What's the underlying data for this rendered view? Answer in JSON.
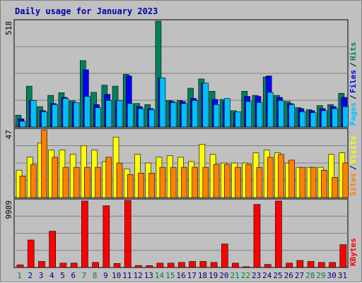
{
  "title": "Daily usage for January 2023",
  "colors": {
    "background": "#c0c0c0",
    "hits": "#00805c",
    "files": "#0000ff",
    "pages": "#00c0ff",
    "visits": "#ffff00",
    "sites": "#ff8000",
    "kbytes": "#ff0000",
    "weekend_label": "#008040",
    "weekday_label": "#000080",
    "title": "#0000aa"
  },
  "chart_data": [
    {
      "type": "bar",
      "panel": "hits-files-pages",
      "ymax_label": "518",
      "ymax": 518,
      "legend": [
        "Pages",
        "Files",
        "Hits"
      ],
      "categories": [
        "1",
        "2",
        "3",
        "4",
        "5",
        "6",
        "7",
        "8",
        "9",
        "10",
        "11",
        "12",
        "13",
        "14",
        "15",
        "16",
        "17",
        "18",
        "19",
        "20",
        "21",
        "22",
        "23",
        "24",
        "25",
        "26",
        "27",
        "28",
        "29",
        "30",
        "31"
      ],
      "series": [
        {
          "name": "Hits",
          "values": [
            58,
            200,
            100,
            155,
            168,
            128,
            325,
            170,
            205,
            200,
            258,
            115,
            110,
            518,
            130,
            130,
            190,
            235,
            175,
            135,
            80,
            175,
            155,
            245,
            155,
            125,
            95,
            85,
            105,
            110,
            165
          ]
        },
        {
          "name": "Files",
          "values": [
            40,
            130,
            80,
            115,
            145,
            120,
            280,
            110,
            160,
            130,
            250,
            100,
            90,
            240,
            125,
            125,
            140,
            215,
            135,
            125,
            70,
            150,
            150,
            250,
            145,
            115,
            90,
            80,
            90,
            100,
            145
          ]
        },
        {
          "name": "Pages",
          "values": [
            28,
            130,
            75,
            110,
            140,
            120,
            150,
            95,
            130,
            130,
            115,
            90,
            85,
            240,
            120,
            115,
            130,
            215,
            110,
            140,
            75,
            125,
            120,
            170,
            130,
            110,
            75,
            70,
            80,
            90,
            100
          ]
        }
      ]
    },
    {
      "type": "bar",
      "panel": "visits-sites",
      "ymax_label": "47",
      "ymax": 47,
      "legend": [
        "Sites",
        "Visits"
      ],
      "categories": [
        "1",
        "2",
        "3",
        "4",
        "5",
        "6",
        "7",
        "8",
        "9",
        "10",
        "11",
        "12",
        "13",
        "14",
        "15",
        "16",
        "17",
        "18",
        "19",
        "20",
        "21",
        "22",
        "23",
        "24",
        "25",
        "26",
        "27",
        "28",
        "29",
        "30",
        "31"
      ],
      "series": [
        {
          "name": "Visits",
          "values": [
            19,
            28,
            38,
            33,
            33,
            30,
            36,
            33,
            25,
            42,
            20,
            30,
            24,
            28,
            29,
            28,
            25,
            37,
            30,
            24,
            24,
            24,
            31,
            33,
            31,
            24,
            21,
            21,
            21,
            30,
            31
          ]
        },
        {
          "name": "Sites",
          "values": [
            15,
            23,
            47,
            28,
            21,
            21,
            21,
            21,
            28,
            24,
            16,
            17,
            17,
            21,
            21,
            21,
            21,
            21,
            23,
            23,
            21,
            23,
            21,
            28,
            30,
            26,
            21,
            21,
            19,
            14,
            24
          ]
        }
      ]
    },
    {
      "type": "bar",
      "panel": "kbytes",
      "ymax_label": "9989",
      "ymax": 9989,
      "legend": [
        "KBytes"
      ],
      "categories": [
        "1",
        "2",
        "3",
        "4",
        "5",
        "6",
        "7",
        "8",
        "9",
        "10",
        "11",
        "12",
        "13",
        "14",
        "15",
        "16",
        "17",
        "18",
        "19",
        "20",
        "21",
        "22",
        "23",
        "24",
        "25",
        "26",
        "27",
        "28",
        "29",
        "30",
        "31"
      ],
      "series": [
        {
          "name": "KBytes",
          "values": [
            400,
            4100,
            900,
            5400,
            650,
            650,
            9900,
            750,
            9200,
            600,
            9989,
            300,
            280,
            650,
            650,
            750,
            900,
            900,
            750,
            3500,
            650,
            120,
            9400,
            450,
            9900,
            650,
            1050,
            900,
            750,
            750,
            3400
          ]
        }
      ]
    }
  ],
  "weekend_days": [
    "1",
    "7",
    "8",
    "14",
    "15",
    "21",
    "22",
    "28",
    "29"
  ]
}
